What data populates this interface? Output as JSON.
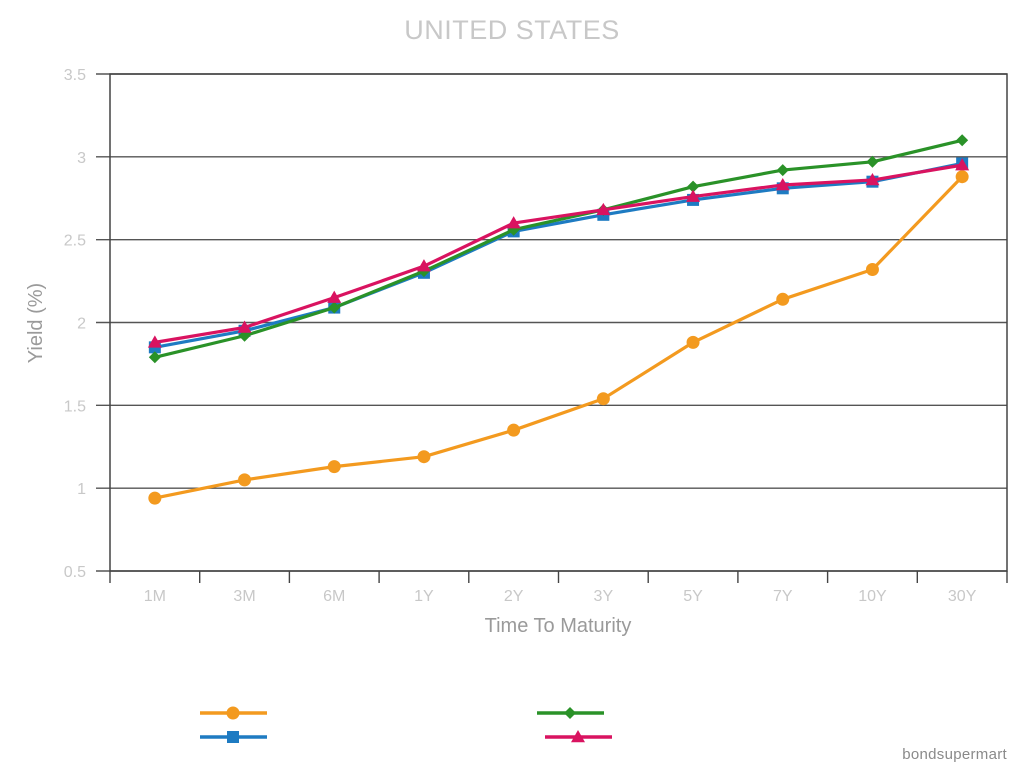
{
  "chart_data": {
    "type": "line",
    "title": "UNITED STATES",
    "xlabel": "Time To Maturity",
    "ylabel": "Yield (%)",
    "categories": [
      "1M",
      "3M",
      "6M",
      "1Y",
      "2Y",
      "3Y",
      "5Y",
      "7Y",
      "10Y",
      "30Y"
    ],
    "ylim": [
      0.5,
      3.5
    ],
    "yticks": [
      "0.5",
      "1",
      "1.5",
      "2",
      "2.5",
      "3",
      "3.5"
    ],
    "grid": true,
    "legend": "bottom",
    "series": [
      {
        "name": "",
        "color": "#f39a1f",
        "marker": "circle",
        "values": [
          0.94,
          1.05,
          1.13,
          1.19,
          1.35,
          1.54,
          1.88,
          2.14,
          2.32,
          2.88
        ]
      },
      {
        "name": "",
        "color": "#1e7bc2",
        "marker": "square",
        "values": [
          1.85,
          1.95,
          2.09,
          2.3,
          2.55,
          2.65,
          2.74,
          2.81,
          2.85,
          2.96
        ]
      },
      {
        "name": "",
        "color": "#2a9228",
        "marker": "diamond",
        "values": [
          1.79,
          1.92,
          2.09,
          2.31,
          2.56,
          2.68,
          2.82,
          2.92,
          2.97,
          3.1
        ]
      },
      {
        "name": "",
        "color": "#d91360",
        "marker": "triangle",
        "values": [
          1.88,
          1.97,
          2.15,
          2.34,
          2.6,
          2.68,
          2.76,
          2.83,
          2.86,
          2.95
        ]
      }
    ]
  },
  "credit": "bondsupermart"
}
